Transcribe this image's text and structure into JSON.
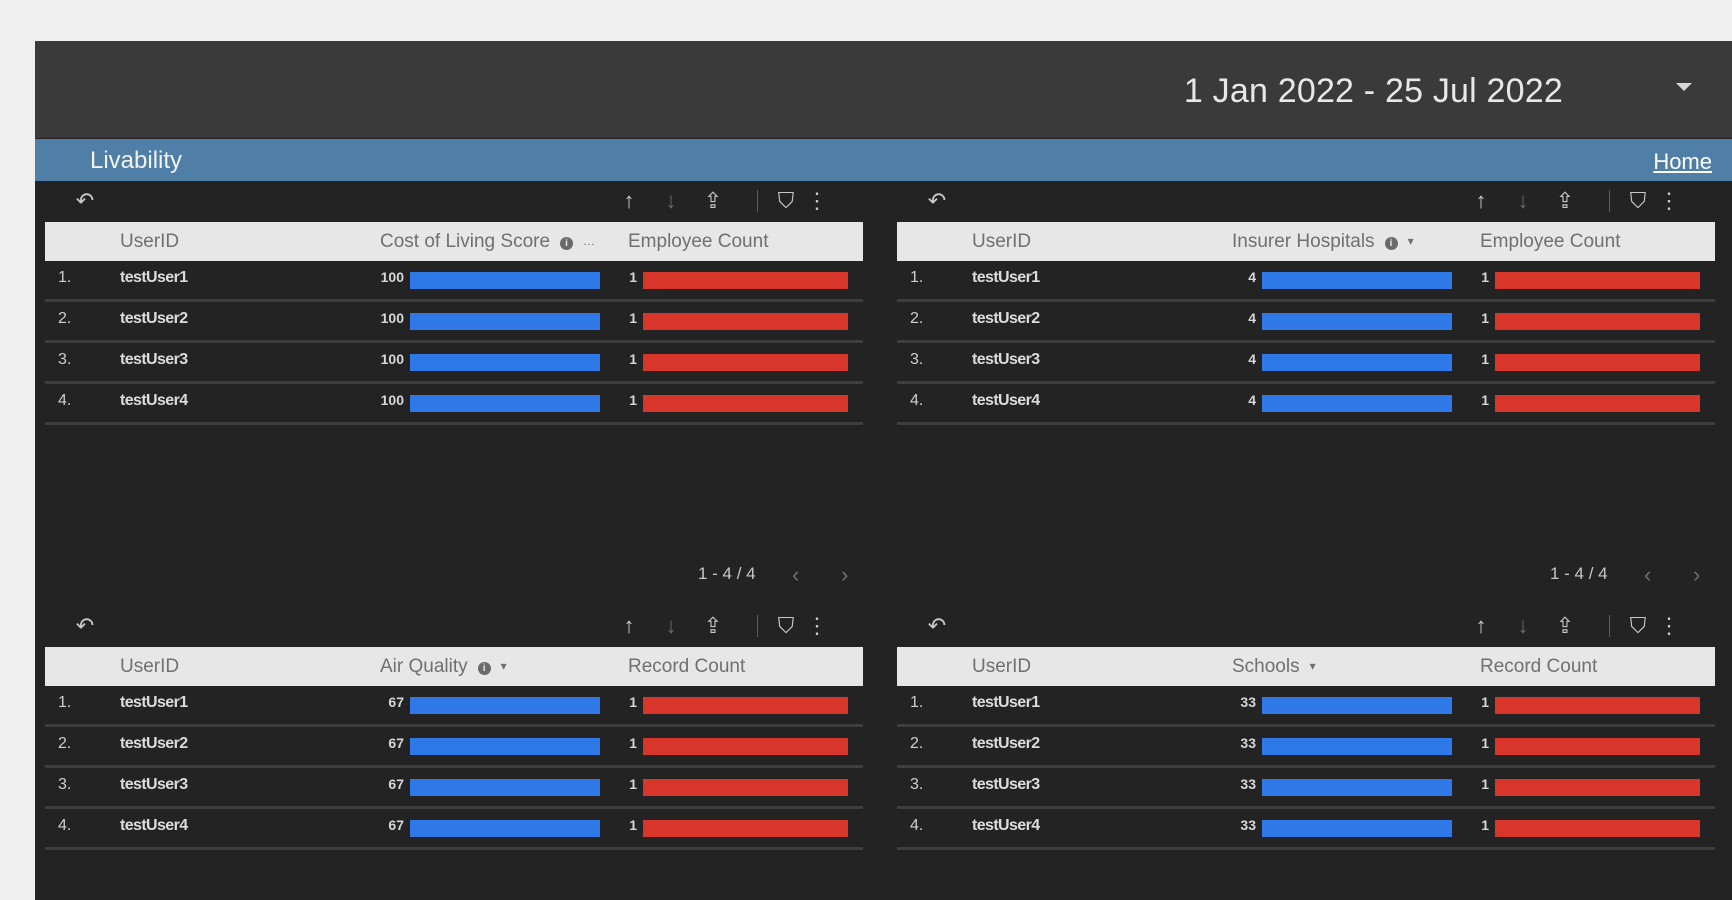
{
  "header": {
    "date_range": "1 Jan 2022 - 25 Jul 2022"
  },
  "banner": {
    "title": "Livability",
    "home_label": "Home"
  },
  "icons": {
    "reset": "↶",
    "sort_asc": "↑",
    "sort_desc": "↓",
    "export": "⇪",
    "filter": "⛉",
    "more": "⋮",
    "prev": "‹",
    "next": "›"
  },
  "colors": {
    "metric_bar": "#2f78e8",
    "count_bar": "#d9362b",
    "banner": "#4f7ea6"
  },
  "tables": [
    {
      "columns": [
        "UserID",
        "Cost of Living Score",
        "Employee Count"
      ],
      "metric_info": true,
      "metric_sort": "…",
      "rows": [
        {
          "num": "1.",
          "user": "testUser1",
          "metric": "100",
          "count": "1"
        },
        {
          "num": "2.",
          "user": "testUser2",
          "metric": "100",
          "count": "1"
        },
        {
          "num": "3.",
          "user": "testUser3",
          "metric": "100",
          "count": "1"
        },
        {
          "num": "4.",
          "user": "testUser4",
          "metric": "100",
          "count": "1"
        }
      ],
      "metric_max": 100,
      "count_max": 1,
      "pagination": "1 - 4 / 4"
    },
    {
      "columns": [
        "UserID",
        "Insurer Hospitals",
        "Employee Count"
      ],
      "metric_info": true,
      "metric_sort": "▾",
      "rows": [
        {
          "num": "1.",
          "user": "testUser1",
          "metric": "4",
          "count": "1"
        },
        {
          "num": "2.",
          "user": "testUser2",
          "metric": "4",
          "count": "1"
        },
        {
          "num": "3.",
          "user": "testUser3",
          "metric": "4",
          "count": "1"
        },
        {
          "num": "4.",
          "user": "testUser4",
          "metric": "4",
          "count": "1"
        }
      ],
      "metric_max": 4,
      "count_max": 1,
      "pagination": "1 - 4 / 4"
    },
    {
      "columns": [
        "UserID",
        "Air Quality",
        "Record Count"
      ],
      "metric_info": true,
      "metric_sort": "▾",
      "rows": [
        {
          "num": "1.",
          "user": "testUser1",
          "metric": "67",
          "count": "1"
        },
        {
          "num": "2.",
          "user": "testUser2",
          "metric": "67",
          "count": "1"
        },
        {
          "num": "3.",
          "user": "testUser3",
          "metric": "67",
          "count": "1"
        },
        {
          "num": "4.",
          "user": "testUser4",
          "metric": "67",
          "count": "1"
        }
      ],
      "metric_max": 67,
      "count_max": 1
    },
    {
      "columns": [
        "UserID",
        "Schools",
        "Record Count"
      ],
      "metric_info": false,
      "metric_sort": "▾",
      "rows": [
        {
          "num": "1.",
          "user": "testUser1",
          "metric": "33",
          "count": "1"
        },
        {
          "num": "2.",
          "user": "testUser2",
          "metric": "33",
          "count": "1"
        },
        {
          "num": "3.",
          "user": "testUser3",
          "metric": "33",
          "count": "1"
        },
        {
          "num": "4.",
          "user": "testUser4",
          "metric": "33",
          "count": "1"
        }
      ],
      "metric_max": 33,
      "count_max": 1
    }
  ]
}
